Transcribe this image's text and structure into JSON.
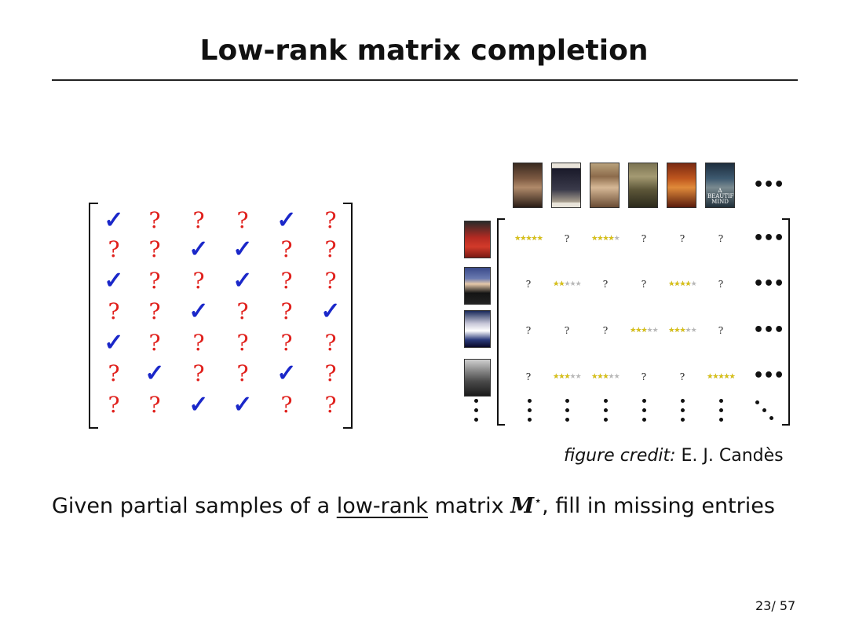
{
  "slide": {
    "title": "Low-rank matrix completion",
    "page_number": "23/ 57",
    "credit": {
      "prefix": "figure credit:",
      "author": "E. J. Candès"
    },
    "caption": {
      "before": "Given partial samples of a ",
      "underlined": "low-rank",
      "middle": " matrix ",
      "symbol": "M",
      "superscript": "⋆",
      "after": ", fill in missing entries"
    }
  },
  "matrix": {
    "observed_symbol": "✓",
    "missing_symbol": "?",
    "observed_color": "#1a27c9",
    "missing_color": "#e0201c",
    "rows": [
      [
        "✓",
        "?",
        "?",
        "?",
        "✓",
        "?"
      ],
      [
        "?",
        "?",
        "✓",
        "✓",
        "?",
        "?"
      ],
      [
        "✓",
        "?",
        "?",
        "✓",
        "?",
        "?"
      ],
      [
        "?",
        "?",
        "✓",
        "?",
        "?",
        "✓"
      ],
      [
        "✓",
        "?",
        "?",
        "?",
        "?",
        "?"
      ],
      [
        "?",
        "✓",
        "?",
        "?",
        "✓",
        "?"
      ],
      [
        "?",
        "?",
        "✓",
        "✓",
        "?",
        "?"
      ]
    ]
  },
  "ratings": {
    "ellipsis": "•••",
    "missing_symbol": "?",
    "poster_labels": [
      "",
      "",
      "",
      "",
      "",
      "A BEAUTIFUL MIND"
    ],
    "rows": [
      [
        5,
        "?",
        4,
        "?",
        "?",
        "?"
      ],
      [
        "?",
        2,
        "?",
        "?",
        4,
        "?"
      ],
      [
        "?",
        "?",
        "?",
        3,
        3,
        "?"
      ],
      [
        "?",
        3,
        3,
        "?",
        "?",
        5
      ]
    ]
  }
}
